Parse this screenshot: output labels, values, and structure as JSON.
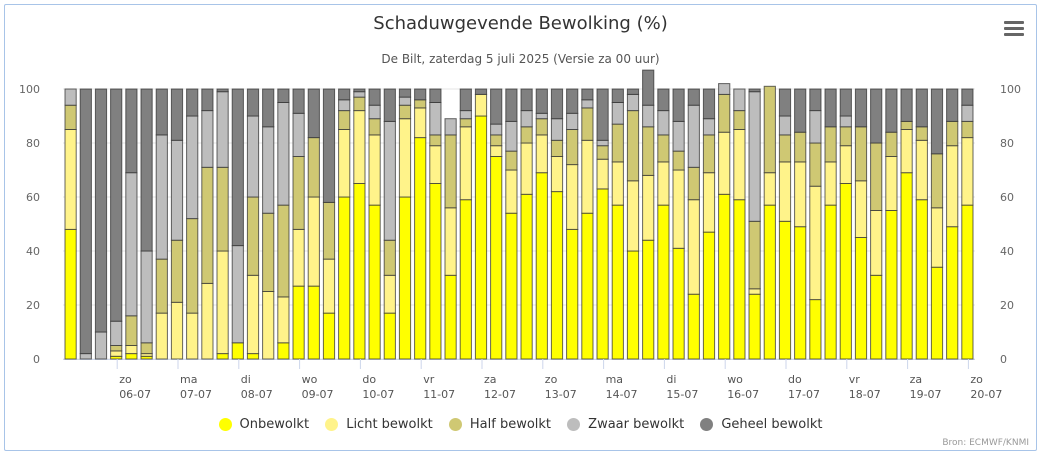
{
  "title": "Schaduwgevende Bewolking (%)",
  "subtitle": "De Bilt, zaterdag 5 juli 2025 (Versie za 00 uur)",
  "credits": "Bron: ECMWF/KNMI",
  "menu_icon": "hamburger-menu-icon",
  "chart_data": {
    "type": "bar",
    "stacked": true,
    "title": "Schaduwgevende Bewolking (%)",
    "ylabel": "",
    "xlabel": "",
    "ylim": [
      0,
      100
    ],
    "yticks": [
      0,
      20,
      40,
      60,
      80,
      100
    ],
    "grid": true,
    "legend_position": "bottom-center",
    "xtick_labels": [
      {
        "day": "zo",
        "date": "06-07",
        "after_bar": 3
      },
      {
        "day": "ma",
        "date": "07-07",
        "after_bar": 7
      },
      {
        "day": "di",
        "date": "08-07",
        "after_bar": 11
      },
      {
        "day": "wo",
        "date": "09-07",
        "after_bar": 15
      },
      {
        "day": "do",
        "date": "10-07",
        "after_bar": 19
      },
      {
        "day": "vr",
        "date": "11-07",
        "after_bar": 23
      },
      {
        "day": "za",
        "date": "12-07",
        "after_bar": 27
      },
      {
        "day": "zo",
        "date": "13-07",
        "after_bar": 31
      },
      {
        "day": "ma",
        "date": "14-07",
        "after_bar": 35
      },
      {
        "day": "di",
        "date": "15-07",
        "after_bar": 39
      },
      {
        "day": "wo",
        "date": "16-07",
        "after_bar": 43
      },
      {
        "day": "do",
        "date": "17-07",
        "after_bar": 47
      },
      {
        "day": "vr",
        "date": "18-07",
        "after_bar": 51
      },
      {
        "day": "za",
        "date": "19-07",
        "after_bar": 55
      },
      {
        "day": "zo",
        "date": "20-07",
        "after_bar": 59
      }
    ],
    "series": [
      {
        "name": "Onbewolkt",
        "color": "#ffff00",
        "values": [
          48,
          0,
          0,
          1,
          2,
          1,
          0,
          0,
          0,
          0,
          2,
          6,
          2,
          0,
          6,
          27,
          27,
          17,
          60,
          65,
          57,
          17,
          60,
          82,
          65,
          31,
          59,
          90,
          75,
          54,
          61,
          69,
          62,
          48,
          54,
          63,
          57,
          40,
          44,
          57,
          41,
          24,
          47,
          61,
          59,
          24,
          57,
          51,
          49,
          22,
          57,
          65,
          45,
          31,
          55,
          69,
          59,
          34,
          49,
          57
        ]
      },
      {
        "name": "Licht bewolkt",
        "color": "#fff38a",
        "values": [
          37,
          0,
          0,
          2,
          3,
          1,
          17,
          21,
          17,
          28,
          38,
          0,
          29,
          25,
          17,
          21,
          33,
          20,
          25,
          27,
          26,
          14,
          29,
          11,
          14,
          25,
          27,
          8,
          4,
          16,
          19,
          14,
          13,
          24,
          27,
          11,
          16,
          26,
          24,
          16,
          29,
          35,
          22,
          23,
          26,
          2,
          12,
          22,
          24,
          42,
          16,
          14,
          21,
          24,
          20,
          16,
          22,
          22,
          30,
          25
        ]
      },
      {
        "name": "Half bewolkt",
        "color": "#cfc873",
        "values": [
          9,
          0,
          0,
          2,
          11,
          4,
          20,
          23,
          35,
          43,
          31,
          0,
          29,
          29,
          34,
          27,
          22,
          21,
          7,
          5,
          6,
          13,
          5,
          3,
          4,
          27,
          3,
          0,
          4,
          7,
          6,
          6,
          6,
          13,
          12,
          5,
          14,
          26,
          18,
          10,
          7,
          12,
          14,
          14,
          7,
          25,
          32,
          10,
          11,
          16,
          13,
          7,
          20,
          25,
          9,
          3,
          5,
          20,
          9,
          6
        ]
      },
      {
        "name": "Zwaar bewolkt",
        "color": "#bdbdbd",
        "values": [
          6,
          2,
          10,
          9,
          53,
          34,
          46,
          37,
          38,
          21,
          28,
          36,
          30,
          32,
          38,
          16,
          0,
          0,
          4,
          2,
          5,
          44,
          3,
          0,
          12,
          6,
          3,
          0,
          4,
          11,
          6,
          2,
          8,
          6,
          3,
          2,
          8,
          6,
          8,
          9,
          11,
          23,
          6,
          4,
          8,
          48,
          0,
          7,
          0,
          12,
          0,
          4,
          0,
          0,
          0,
          0,
          0,
          0,
          0,
          6
        ]
      },
      {
        "name": "Geheel bewolkt",
        "color": "#808080",
        "values": [
          0,
          98,
          90,
          86,
          31,
          60,
          17,
          19,
          10,
          8,
          1,
          58,
          10,
          14,
          5,
          9,
          18,
          42,
          4,
          1,
          6,
          12,
          3,
          4,
          5,
          0,
          8,
          2,
          13,
          12,
          8,
          9,
          11,
          9,
          4,
          19,
          5,
          2,
          13,
          8,
          12,
          6,
          11,
          0,
          0,
          1,
          0,
          10,
          16,
          8,
          14,
          10,
          14,
          20,
          16,
          12,
          14,
          24,
          12,
          6
        ]
      }
    ]
  },
  "legend": [
    {
      "label": "Onbewolkt",
      "color": "#ffff00"
    },
    {
      "label": "Licht bewolkt",
      "color": "#fff38a"
    },
    {
      "label": "Half bewolkt",
      "color": "#cfc873"
    },
    {
      "label": "Zwaar bewolkt",
      "color": "#bdbdbd"
    },
    {
      "label": "Geheel bewolkt",
      "color": "#808080"
    }
  ]
}
